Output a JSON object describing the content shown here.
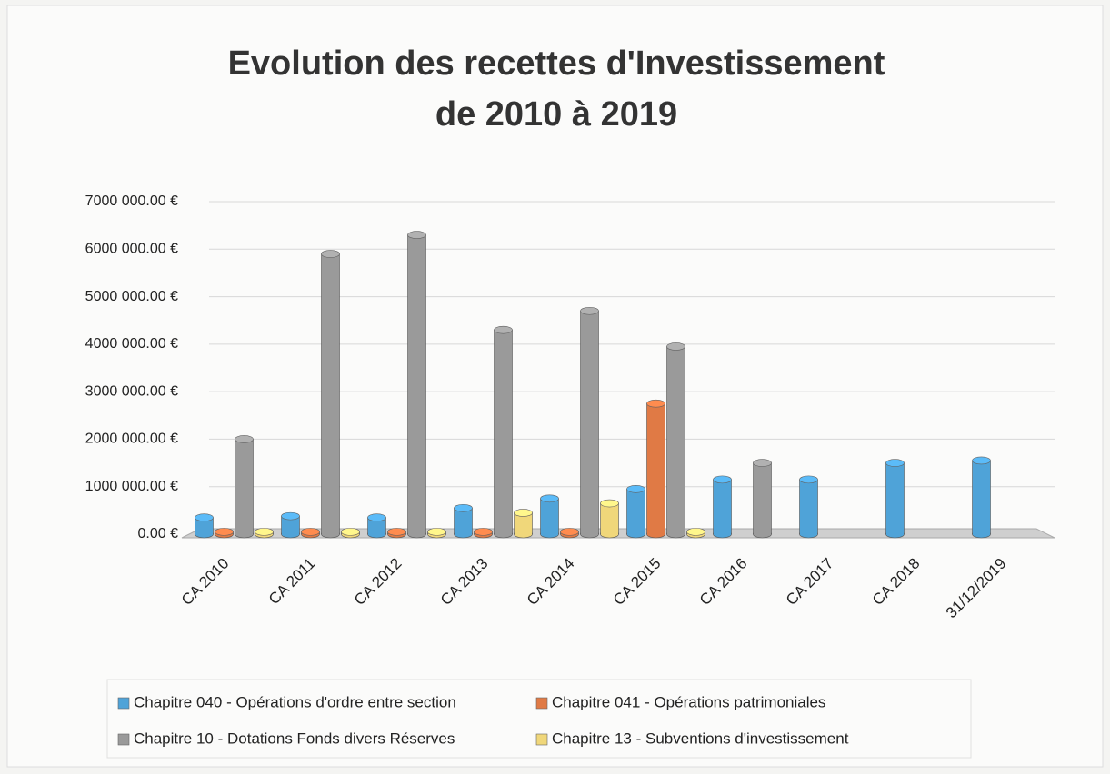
{
  "chart_data": {
    "type": "bar",
    "title": [
      "Evolution des recettes d'Investissement",
      "de 2010 à 2019"
    ],
    "categories": [
      "CA 2010",
      "CA 2011",
      "CA 2012",
      "CA 2013",
      "CA 2014",
      "CA 2015",
      "CA 2016",
      "CA 2017",
      "CA 2018",
      "31/12/2019"
    ],
    "series": [
      {
        "name": "Chapitre 040 - Opérations d'ordre entre section",
        "color": "#4fa3d8",
        "values": [
          350000,
          380000,
          350000,
          550000,
          750000,
          950000,
          1150000,
          1150000,
          1500000,
          1550000
        ]
      },
      {
        "name": "Chapitre 041 - Opérations patrimoniales",
        "color": "#e07a45",
        "values": [
          50000,
          50000,
          50000,
          50000,
          50000,
          2750000,
          null,
          null,
          null,
          null
        ]
      },
      {
        "name": "Chapitre 10 - Dotations Fonds divers Réserves",
        "color": "#9a9a9a",
        "values": [
          2000000,
          5900000,
          6300000,
          4300000,
          4700000,
          3950000,
          1500000,
          null,
          null,
          null
        ]
      },
      {
        "name": "Chapitre 13 - Subventions d'investissement",
        "color": "#f0d77a",
        "values": [
          50000,
          50000,
          50000,
          450000,
          650000,
          50000,
          null,
          null,
          null,
          null
        ]
      }
    ],
    "ylim": [
      0,
      7000000
    ],
    "yticks": [
      {
        "value": 0,
        "label": "0.00 €"
      },
      {
        "value": 1000000,
        "label": "1000 000.00 €"
      },
      {
        "value": 2000000,
        "label": "2000 000.00 €"
      },
      {
        "value": 3000000,
        "label": "3000 000.00 €"
      },
      {
        "value": 4000000,
        "label": "4000 000.00 €"
      },
      {
        "value": 5000000,
        "label": "5000 000.00 €"
      },
      {
        "value": 6000000,
        "label": "6000 000.00 €"
      },
      {
        "value": 7000000,
        "label": "7000 000.00 €"
      }
    ],
    "grid": true
  }
}
